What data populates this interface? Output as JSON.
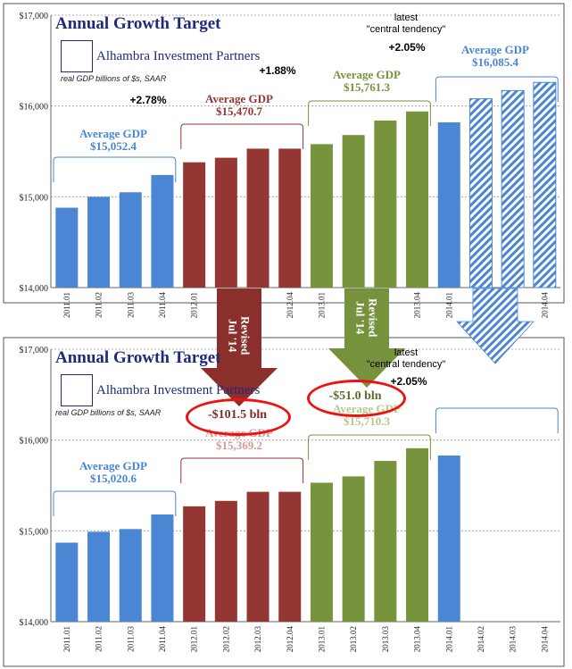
{
  "chart_data": [
    {
      "type": "bar",
      "title": "Annual Growth Target",
      "subtitle": "real GDP billions of $s, SAAR",
      "logo": "Alhambra Investment Partners",
      "ylim": [
        14000,
        17000
      ],
      "yticks": [
        "$14,000",
        "$15,000",
        "$16,000",
        "$17,000"
      ],
      "categories": [
        "2011.01",
        "2011.02",
        "2011.03",
        "2011.04",
        "2012.01",
        "2012.02",
        "2012.03",
        "2012.04",
        "2013.01",
        "2013.02",
        "2013.03",
        "2013.04",
        "2014.01",
        "2014.02",
        "2014.03",
        "2014.04"
      ],
      "values": [
        14880,
        15000,
        15050,
        15240,
        15380,
        15430,
        15530,
        15530,
        15580,
        15680,
        15840,
        15940,
        15820,
        16080,
        16170,
        16260
      ],
      "annotations": {
        "avg_2011": [
          "Average GDP",
          "$15,052.4"
        ],
        "avg_2012": [
          "Average GDP",
          "$15,470.7"
        ],
        "avg_2013": [
          "Average GDP",
          "$15,761.3"
        ],
        "avg_2014": [
          "Average GDP",
          "$16,085.4"
        ],
        "growth_2012": "+2.78%",
        "growth_2013": "+1.88%",
        "latest_label": [
          "latest",
          "\"central tendency\""
        ],
        "growth_2014": "+2.05%"
      }
    },
    {
      "type": "bar",
      "title": "Annual Growth Target",
      "subtitle": "real GDP billions of $s, SAAR",
      "logo": "Alhambra Investment Partners",
      "ylim": [
        14000,
        17000
      ],
      "yticks": [
        "$14,000",
        "$15,000",
        "$16,000",
        "$17,000"
      ],
      "categories": [
        "2011.01",
        "2011.02",
        "2011.03",
        "2011.04",
        "2012.01",
        "2012.02",
        "2012.03",
        "2012.04",
        "2013.01",
        "2013.02",
        "2013.03",
        "2013.04",
        "2014.01",
        "2014.02",
        "2014.03",
        "2014.04"
      ],
      "values": [
        14870,
        14990,
        15020,
        15180,
        15270,
        15330,
        15430,
        15430,
        15530,
        15600,
        15770,
        15910,
        15830,
        null,
        null,
        null
      ],
      "annotations": {
        "avg_2011": [
          "Average GDP",
          "$15,020.6"
        ],
        "avg_2012": [
          "Average GDP",
          "$15,369.2"
        ],
        "avg_2013": [
          "Average GDP",
          "$15,710.3"
        ],
        "revision_2012": "-$101.5 bln",
        "revision_2013": "-$51.0 bln",
        "latest_label": [
          "latest",
          "\"central tendency\""
        ],
        "growth_2014": "+2.05%"
      }
    }
  ],
  "revised_label": [
    "Revised",
    "Jul '14"
  ],
  "colors": {
    "y2011": "#4a86d4",
    "y2012": "#943634",
    "y2013": "#77933c",
    "y2014": "#4a86d4",
    "text2011": "#4a86d4",
    "text2012": "#943634",
    "text2013": "#77933c",
    "text2014": "#4a86d4",
    "arrow_red": "#8b2f2c",
    "arrow_green": "#76923c",
    "oval": "#e31010"
  }
}
